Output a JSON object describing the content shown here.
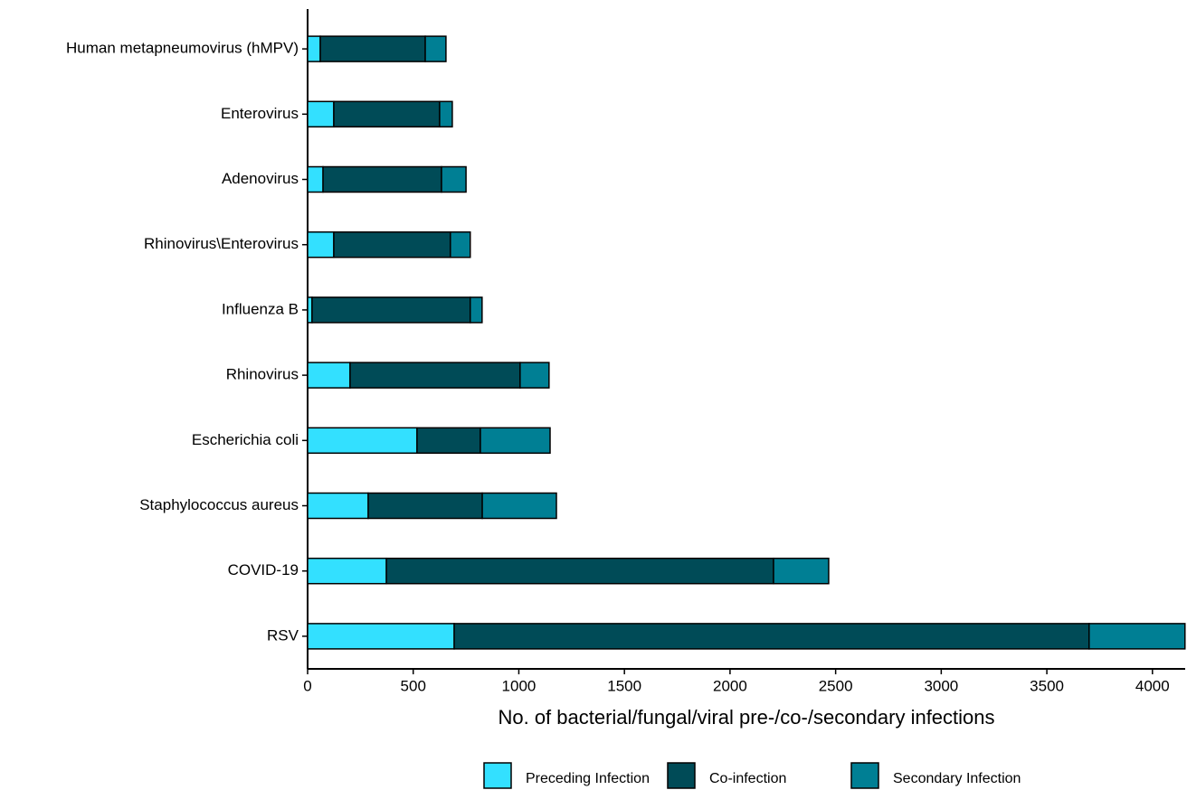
{
  "chart_data": {
    "type": "stacked-bar-horizontal",
    "xlabel": "No. of bacterial/fungal/viral pre-/co-/secondary infections",
    "categories": [
      "Human metapneumovirus (hMPV)",
      "Enterovirus",
      "Adenovirus",
      "Rhinovirus\\Enterovirus",
      "Influenza B",
      "Rhinovirus",
      "Escherichia coli",
      "Staphylococcus aureus",
      "COVID-19",
      "RSV"
    ],
    "series": [
      {
        "name": "Preceding Infection",
        "color": "#33e0ff",
        "values": [
          60,
          124,
          73,
          124,
          21,
          201,
          518,
          287,
          373,
          694
        ]
      },
      {
        "name": "Co-infection",
        "color": "#004b57",
        "values": [
          497,
          501,
          561,
          552,
          749,
          805,
          300,
          540,
          1833,
          3006
        ]
      },
      {
        "name": "Secondary Infection",
        "color": "#007f94",
        "values": [
          98,
          60,
          116,
          94,
          56,
          137,
          330,
          351,
          261,
          454
        ]
      }
    ],
    "xlim": [
      0,
      4155
    ],
    "xticks": [
      0,
      500,
      1000,
      1500,
      2000,
      2500,
      3000,
      3500,
      4000
    ],
    "legend": "bottom"
  }
}
